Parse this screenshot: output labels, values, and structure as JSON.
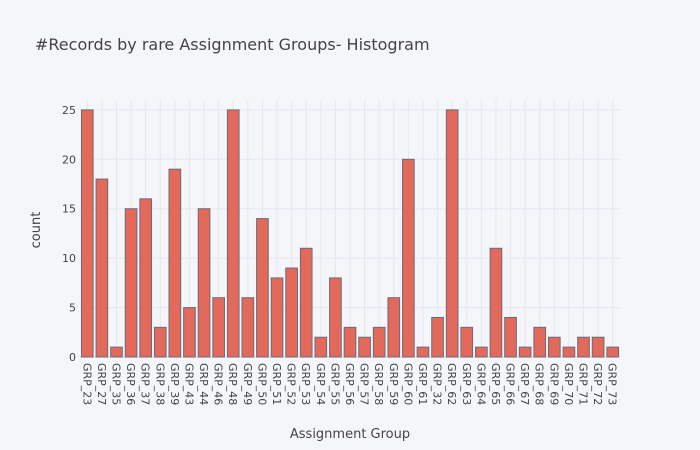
{
  "chart_data": {
    "type": "bar",
    "title": "#Records by rare Assignment Groups- Histogram",
    "xlabel": "Assignment Group",
    "ylabel": "count",
    "ylim": [
      0,
      26
    ],
    "yticks": [
      0,
      5,
      10,
      15,
      20,
      25
    ],
    "grid": true,
    "legend": "none",
    "bar_color": "#e3695a",
    "bar_outline_color": "#6b6b7a",
    "background_color": "#f5f6f9",
    "categories": [
      "GRP_23",
      "GRP_27",
      "GRP_35",
      "GRP_36",
      "GRP_37",
      "GRP_38",
      "GRP_39",
      "GRP_43",
      "GRP_44",
      "GRP_46",
      "GRP_48",
      "GRP_49",
      "GRP_50",
      "GRP_51",
      "GRP_52",
      "GRP_53",
      "GRP_54",
      "GRP_55",
      "GRP_56",
      "GRP_57",
      "GRP_58",
      "GRP_59",
      "GRP_60",
      "GRP_61",
      "GRP_32",
      "GRP_62",
      "GRP_63",
      "GRP_64",
      "GRP_65",
      "GRP_66",
      "GRP_67",
      "GRP_68",
      "GRP_69",
      "GRP_70",
      "GRP_71",
      "GRP_72",
      "GRP_73"
    ],
    "values": [
      25,
      18,
      1,
      15,
      16,
      3,
      19,
      5,
      15,
      6,
      25,
      6,
      14,
      8,
      9,
      11,
      2,
      8,
      3,
      2,
      3,
      6,
      20,
      1,
      4,
      25,
      3,
      1,
      11,
      4,
      1,
      3,
      2,
      1,
      2,
      2,
      1
    ]
  }
}
